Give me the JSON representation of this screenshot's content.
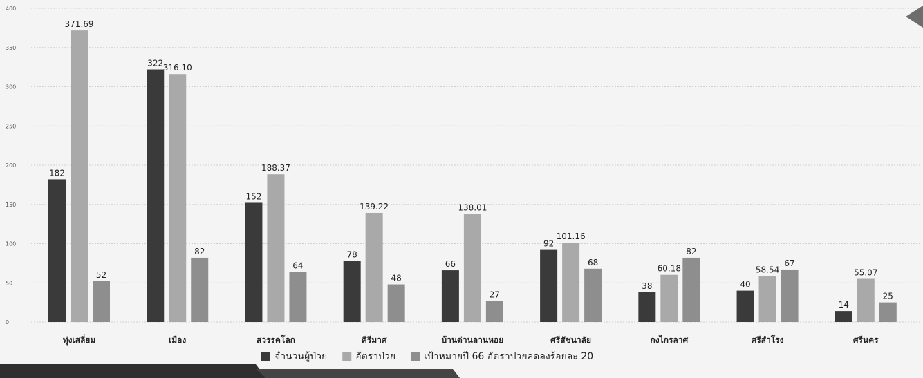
{
  "chart_data": {
    "type": "bar",
    "title": "",
    "xlabel": "",
    "ylabel": "",
    "ylim": [
      0,
      400
    ],
    "yticks": [
      0,
      50,
      100,
      150,
      200,
      250,
      300,
      350,
      400
    ],
    "grid": true,
    "legend_position": "bottom",
    "categories": [
      "ทุ่งเสลี่ยม",
      "เมือง",
      "สวรรคโลก",
      "คีรีมาศ",
      "บ้านด่านลานหอย",
      "ศรีสัชนาลัย",
      "กงไกรลาศ",
      "ศรีสำโรง",
      "ศรีนคร"
    ],
    "series": [
      {
        "name": "จำนวนผู้ป่วย",
        "color": "#3a3a3a",
        "values": [
          182,
          322,
          152,
          78,
          66,
          92,
          38,
          40,
          14
        ],
        "labels": [
          "182",
          "322",
          "152",
          "78",
          "66",
          "92",
          "38",
          "40",
          "14"
        ]
      },
      {
        "name": "อัตราป่วย",
        "color": "#a9a9a9",
        "values": [
          371.69,
          316.1,
          188.37,
          139.22,
          138.01,
          101.16,
          60.18,
          58.54,
          55.07
        ],
        "labels": [
          "371.69",
          "316.10",
          "188.37",
          "139.22",
          "138.01",
          "101.16",
          "60.18",
          "58.54",
          "55.07"
        ]
      },
      {
        "name": "เป้าหมายปี 66 อัตราป่วยลดลงร้อยละ 20",
        "color": "#8e8e8e",
        "values": [
          52,
          82,
          64,
          48,
          27,
          68,
          82,
          67,
          25
        ],
        "labels": [
          "52",
          "82",
          "64",
          "48",
          "27",
          "68",
          "82",
          "67",
          "25"
        ]
      }
    ]
  }
}
